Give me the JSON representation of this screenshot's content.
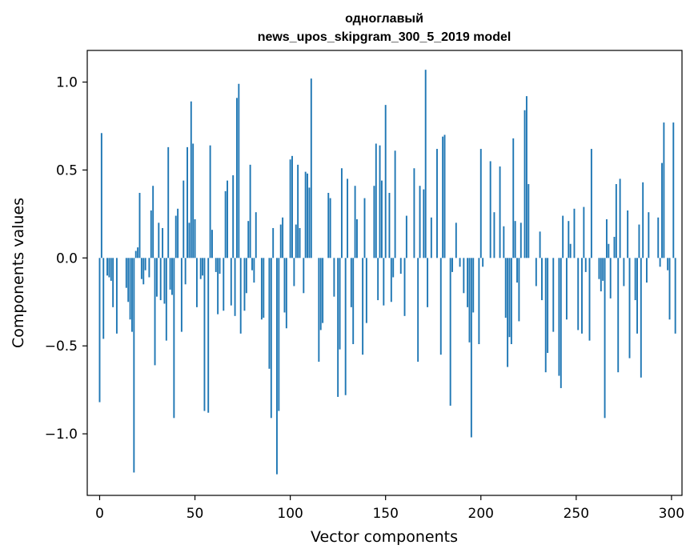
{
  "chart_data": {
    "type": "bar",
    "title": "одноглавый",
    "subtitle": "news_upos_skipgram_300_5_2019 model",
    "xlabel": "Vector components",
    "ylabel": "Components values",
    "xlim": [
      -6.5,
      305.5
    ],
    "ylim": [
      -1.35,
      1.18
    ],
    "xticks": [
      0,
      50,
      100,
      150,
      200,
      250,
      300
    ],
    "xtick_labels": [
      "0",
      "50",
      "100",
      "150",
      "200",
      "250",
      "300"
    ],
    "yticks": [
      -1.0,
      -0.5,
      0.0,
      0.5,
      1.0
    ],
    "ytick_labels": [
      "−1.0",
      "−0.5",
      "0.0",
      "0.5",
      "1.0"
    ],
    "grid": false,
    "bar_color": "#1f77b4",
    "values": [
      -0.82,
      0.71,
      -0.46,
      0.0,
      -0.1,
      -0.11,
      -0.13,
      -0.28,
      0.0,
      -0.43,
      0.0,
      0.0,
      0.0,
      0.0,
      -0.17,
      -0.25,
      -0.35,
      -0.42,
      -1.22,
      0.04,
      0.06,
      0.37,
      -0.12,
      -0.15,
      -0.07,
      0.0,
      -0.11,
      0.27,
      0.41,
      -0.61,
      -0.22,
      0.2,
      -0.24,
      0.17,
      -0.26,
      -0.47,
      0.63,
      -0.18,
      -0.21,
      -0.91,
      0.24,
      0.28,
      0.0,
      -0.42,
      0.44,
      -0.15,
      0.63,
      0.2,
      0.89,
      0.65,
      0.22,
      -0.28,
      0.0,
      -0.12,
      -0.1,
      -0.87,
      0.0,
      -0.88,
      0.64,
      0.16,
      0.0,
      -0.08,
      -0.32,
      -0.09,
      0.0,
      -0.3,
      0.38,
      0.44,
      0.0,
      -0.27,
      0.47,
      -0.33,
      0.91,
      0.99,
      -0.43,
      0.0,
      -0.3,
      -0.2,
      0.21,
      0.53,
      -0.07,
      -0.14,
      0.26,
      0.0,
      0.0,
      -0.35,
      -0.34,
      0.0,
      0.0,
      -0.63,
      -0.91,
      0.17,
      0.0,
      -1.23,
      -0.87,
      0.19,
      0.23,
      -0.31,
      -0.4,
      0.0,
      0.56,
      0.58,
      -0.16,
      0.19,
      0.53,
      0.17,
      0.0,
      -0.2,
      0.49,
      0.48,
      0.4,
      1.02,
      0.0,
      0.0,
      0.0,
      -0.59,
      -0.41,
      -0.37,
      0.0,
      0.0,
      0.37,
      0.34,
      0.0,
      -0.22,
      0.0,
      -0.79,
      -0.52,
      0.51,
      0.0,
      -0.78,
      0.45,
      0.0,
      -0.28,
      -0.49,
      0.41,
      0.22,
      0.0,
      0.0,
      -0.55,
      0.34,
      -0.37,
      0.0,
      0.0,
      0.0,
      0.41,
      0.65,
      -0.24,
      0.64,
      0.44,
      -0.27,
      0.87,
      0.0,
      0.37,
      -0.25,
      -0.11,
      0.61,
      0.0,
      0.0,
      -0.09,
      0.0,
      -0.33,
      0.24,
      0.0,
      0.0,
      0.0,
      0.51,
      0.0,
      -0.59,
      0.41,
      0.0,
      0.39,
      1.07,
      -0.28,
      0.0,
      0.23,
      0.0,
      0.0,
      0.62,
      0.0,
      -0.55,
      0.69,
      0.7,
      0.0,
      0.0,
      -0.84,
      -0.08,
      0.0,
      0.2,
      0.0,
      -0.05,
      0.0,
      -0.2,
      0.0,
      -0.28,
      -0.48,
      -1.02,
      -0.31,
      0.0,
      0.0,
      -0.49,
      0.62,
      -0.05,
      0.0,
      0.0,
      0.0,
      0.55,
      0.0,
      0.26,
      0.0,
      0.0,
      0.52,
      0.0,
      0.18,
      -0.34,
      -0.62,
      -0.45,
      -0.49,
      0.68,
      0.21,
      -0.14,
      -0.36,
      0.2,
      0.0,
      0.84,
      0.92,
      0.42,
      0.0,
      0.0,
      0.0,
      -0.16,
      0.0,
      0.15,
      -0.24,
      0.0,
      -0.65,
      -0.54,
      0.0,
      0.0,
      -0.42,
      0.0,
      0.0,
      -0.67,
      -0.74,
      0.24,
      0.0,
      -0.35,
      0.21,
      0.08,
      0.0,
      0.28,
      0.0,
      -0.41,
      0.0,
      -0.43,
      0.29,
      -0.08,
      0.0,
      -0.47,
      0.62,
      0.0,
      0.0,
      0.0,
      -0.12,
      -0.19,
      -0.13,
      -0.91,
      0.22,
      0.08,
      -0.23,
      0.0,
      0.12,
      0.42,
      -0.65,
      0.45,
      0.0,
      -0.16,
      0.0,
      0.27,
      -0.57,
      0.0,
      0.0,
      -0.24,
      -0.43,
      0.19,
      -0.68,
      0.43,
      0.0,
      -0.14,
      0.26,
      0.0,
      0.0,
      0.0,
      0.0,
      0.23,
      -0.05,
      0.54,
      0.77,
      0.0,
      -0.07,
      -0.35,
      0.0,
      0.77,
      -0.43
    ]
  }
}
